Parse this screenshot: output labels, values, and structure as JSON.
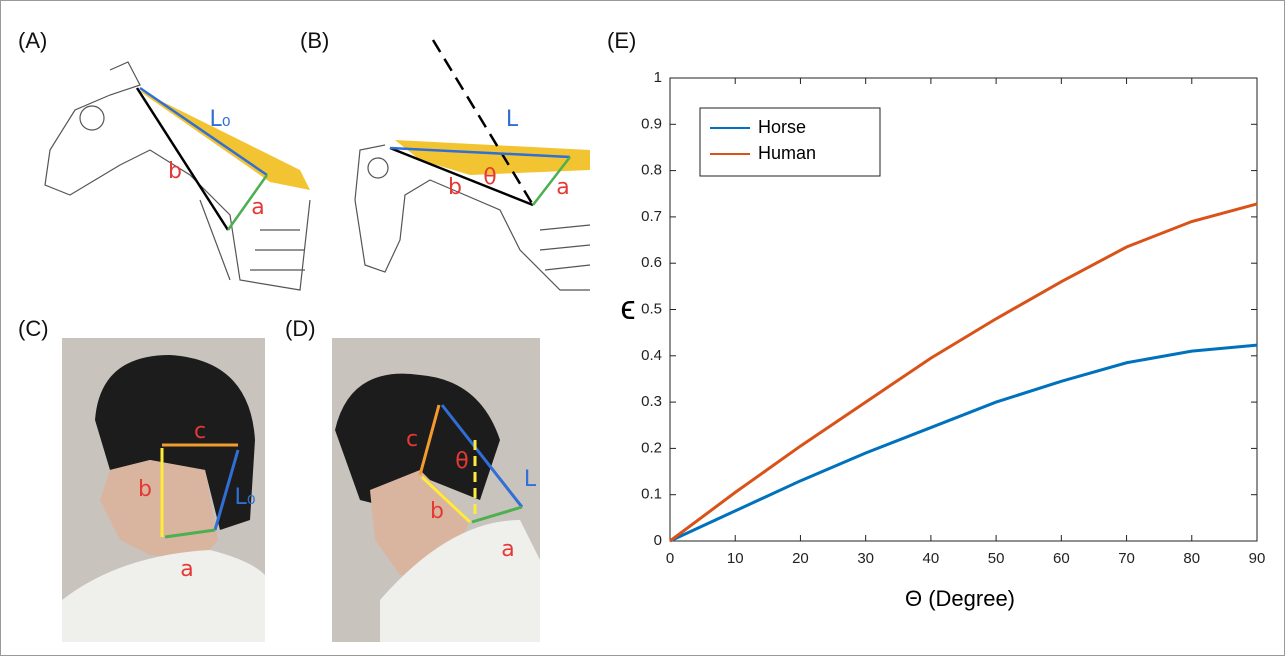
{
  "panels": {
    "labels": [
      "(A)",
      "(B)",
      "(C)",
      "(D)",
      "(E)"
    ]
  },
  "annotations": {
    "A": [
      "L₀",
      "b",
      "a"
    ],
    "B": [
      "L",
      "b",
      "θ",
      "a"
    ],
    "C": [
      "c",
      "b",
      "L₀",
      "a"
    ],
    "D": [
      "c",
      "b",
      "θ",
      "L",
      "a"
    ]
  },
  "chart_data": {
    "type": "line",
    "xlabel": "Θ (Degree)",
    "ylabel": "ϵ",
    "x": [
      0,
      10,
      20,
      30,
      40,
      50,
      60,
      70,
      80,
      90
    ],
    "series": [
      {
        "name": "Horse",
        "color": "#0072bd",
        "values": [
          0,
          0.065,
          0.13,
          0.19,
          0.245,
          0.3,
          0.345,
          0.385,
          0.41,
          0.423
        ]
      },
      {
        "name": "Human",
        "color": "#d95319",
        "values": [
          0,
          0.105,
          0.205,
          0.3,
          0.395,
          0.48,
          0.56,
          0.635,
          0.69,
          0.728
        ]
      }
    ],
    "xlim": [
      0,
      90
    ],
    "ylim": [
      0,
      1
    ],
    "xticks": [
      0,
      10,
      20,
      30,
      40,
      50,
      60,
      70,
      80,
      90
    ],
    "yticks": [
      0,
      0.1,
      0.2,
      0.3,
      0.4,
      0.5,
      0.6,
      0.7,
      0.8,
      0.9,
      1
    ],
    "legend": "upper left"
  }
}
